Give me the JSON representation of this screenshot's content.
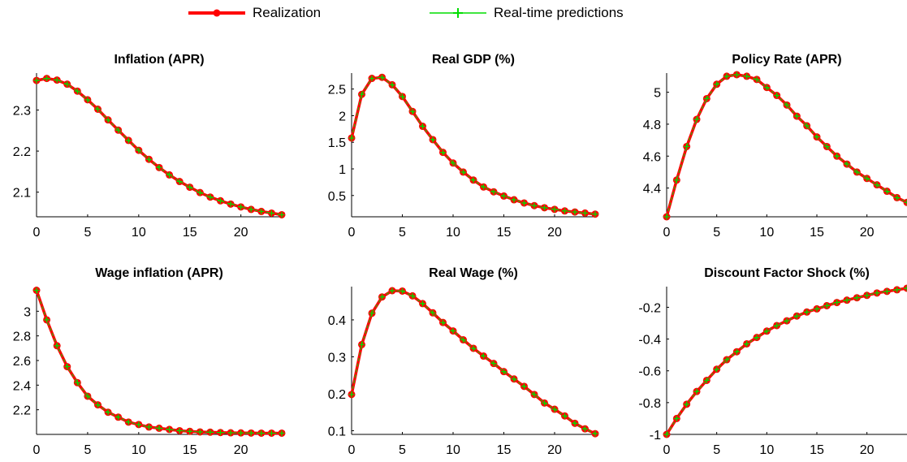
{
  "legend": [
    {
      "label": "Realization",
      "color": "#ff0000",
      "marker": "dot"
    },
    {
      "label": "Real-time predictions",
      "color": "#00dd00",
      "marker": "plus"
    }
  ],
  "colors": {
    "realization": "#ff0000",
    "prediction": "#00dd00",
    "axis": "#000000"
  },
  "chart_data": [
    {
      "type": "line",
      "title": "Inflation (APR)",
      "xlim": [
        0,
        24
      ],
      "ylim": [
        2.04,
        2.39
      ],
      "xticks": [
        0,
        5,
        10,
        15,
        20
      ],
      "yticks": [
        2.1,
        2.2,
        2.3
      ],
      "ytick_labels": [
        "2.1",
        "2.2",
        "2.3"
      ],
      "x": [
        0,
        1,
        2,
        3,
        4,
        5,
        6,
        7,
        8,
        9,
        10,
        11,
        12,
        13,
        14,
        15,
        16,
        17,
        18,
        19,
        20,
        21,
        22,
        23,
        24
      ],
      "series": [
        {
          "name": "Realization",
          "values": [
            2.372,
            2.377,
            2.373,
            2.363,
            2.346,
            2.325,
            2.302,
            2.276,
            2.251,
            2.226,
            2.202,
            2.18,
            2.16,
            2.142,
            2.126,
            2.112,
            2.099,
            2.088,
            2.079,
            2.071,
            2.064,
            2.058,
            2.053,
            2.049,
            2.045
          ]
        },
        {
          "name": "Real-time predictions",
          "values": [
            2.372,
            2.377,
            2.373,
            2.363,
            2.346,
            2.325,
            2.302,
            2.276,
            2.251,
            2.226,
            2.202,
            2.18,
            2.16,
            2.142,
            2.126,
            2.112,
            2.099,
            2.088,
            2.079,
            2.071,
            2.064,
            2.058,
            2.053,
            2.049,
            2.045
          ]
        }
      ]
    },
    {
      "type": "line",
      "title": "Real GDP (%)",
      "xlim": [
        0,
        24
      ],
      "ylim": [
        0.1,
        2.8
      ],
      "xticks": [
        0,
        5,
        10,
        15,
        20
      ],
      "yticks": [
        0.5,
        1,
        1.5,
        2,
        2.5
      ],
      "ytick_labels": [
        "0.5",
        "1",
        "1.5",
        "2",
        "2.5"
      ],
      "x": [
        0,
        1,
        2,
        3,
        4,
        5,
        6,
        7,
        8,
        9,
        10,
        11,
        12,
        13,
        14,
        15,
        16,
        17,
        18,
        19,
        20,
        21,
        22,
        23,
        24
      ],
      "series": [
        {
          "name": "Realization",
          "values": [
            1.58,
            2.4,
            2.7,
            2.72,
            2.58,
            2.36,
            2.08,
            1.8,
            1.55,
            1.31,
            1.11,
            0.94,
            0.79,
            0.66,
            0.57,
            0.49,
            0.42,
            0.36,
            0.31,
            0.27,
            0.24,
            0.21,
            0.19,
            0.17,
            0.15
          ]
        },
        {
          "name": "Real-time predictions",
          "values": [
            1.58,
            2.4,
            2.7,
            2.72,
            2.58,
            2.36,
            2.08,
            1.8,
            1.55,
            1.31,
            1.11,
            0.94,
            0.79,
            0.66,
            0.57,
            0.49,
            0.42,
            0.36,
            0.31,
            0.27,
            0.24,
            0.21,
            0.19,
            0.17,
            0.15
          ]
        }
      ]
    },
    {
      "type": "line",
      "title": "Policy Rate (APR)",
      "xlim": [
        0,
        24
      ],
      "ylim": [
        4.22,
        5.12
      ],
      "xticks": [
        0,
        5,
        10,
        15,
        20
      ],
      "yticks": [
        4.4,
        4.6,
        4.8,
        5
      ],
      "ytick_labels": [
        "4.4",
        "4.6",
        "4.8",
        "5"
      ],
      "x": [
        0,
        1,
        2,
        3,
        4,
        5,
        6,
        7,
        8,
        9,
        10,
        11,
        12,
        13,
        14,
        15,
        16,
        17,
        18,
        19,
        20,
        21,
        22,
        23,
        24
      ],
      "series": [
        {
          "name": "Realization",
          "values": [
            4.22,
            4.45,
            4.66,
            4.83,
            4.96,
            5.05,
            5.1,
            5.11,
            5.1,
            5.08,
            5.03,
            4.98,
            4.92,
            4.85,
            4.79,
            4.72,
            4.66,
            4.6,
            4.55,
            4.5,
            4.46,
            4.42,
            4.38,
            4.34,
            4.31
          ]
        },
        {
          "name": "Real-time predictions",
          "values": [
            4.22,
            4.45,
            4.66,
            4.83,
            4.96,
            5.05,
            5.1,
            5.11,
            5.1,
            5.08,
            5.03,
            4.98,
            4.92,
            4.85,
            4.79,
            4.72,
            4.66,
            4.6,
            4.55,
            4.5,
            4.46,
            4.42,
            4.38,
            4.34,
            4.31
          ]
        }
      ]
    },
    {
      "type": "line",
      "title": "Wage inflation (APR)",
      "xlim": [
        0,
        24
      ],
      "ylim": [
        2.0,
        3.2
      ],
      "xticks": [
        0,
        5,
        10,
        15,
        20
      ],
      "yticks": [
        2.2,
        2.4,
        2.6,
        2.8,
        3
      ],
      "ytick_labels": [
        "2.2",
        "2.4",
        "2.6",
        "2.8",
        "3"
      ],
      "x": [
        0,
        1,
        2,
        3,
        4,
        5,
        6,
        7,
        8,
        9,
        10,
        11,
        12,
        13,
        14,
        15,
        16,
        17,
        18,
        19,
        20,
        21,
        22,
        23,
        24
      ],
      "series": [
        {
          "name": "Realization",
          "values": [
            3.17,
            2.93,
            2.72,
            2.55,
            2.42,
            2.31,
            2.24,
            2.18,
            2.14,
            2.1,
            2.08,
            2.06,
            2.05,
            2.04,
            2.03,
            2.025,
            2.02,
            2.018,
            2.015,
            2.013,
            2.012,
            2.011,
            2.01,
            2.01,
            2.01
          ]
        },
        {
          "name": "Real-time predictions",
          "values": [
            3.17,
            2.93,
            2.72,
            2.55,
            2.42,
            2.31,
            2.24,
            2.18,
            2.14,
            2.1,
            2.08,
            2.06,
            2.05,
            2.04,
            2.03,
            2.025,
            2.02,
            2.018,
            2.015,
            2.013,
            2.012,
            2.011,
            2.01,
            2.01,
            2.01
          ]
        }
      ]
    },
    {
      "type": "line",
      "title": "Real Wage (%)",
      "xlim": [
        0,
        24
      ],
      "ylim": [
        0.09,
        0.49
      ],
      "xticks": [
        0,
        5,
        10,
        15,
        20
      ],
      "yticks": [
        0.1,
        0.2,
        0.3,
        0.4
      ],
      "ytick_labels": [
        "0.1",
        "0.2",
        "0.3",
        "0.4"
      ],
      "x": [
        0,
        1,
        2,
        3,
        4,
        5,
        6,
        7,
        8,
        9,
        10,
        11,
        12,
        13,
        14,
        15,
        16,
        17,
        18,
        19,
        20,
        21,
        22,
        23,
        24
      ],
      "series": [
        {
          "name": "Realization",
          "values": [
            0.198,
            0.333,
            0.418,
            0.462,
            0.479,
            0.478,
            0.465,
            0.444,
            0.419,
            0.393,
            0.37,
            0.346,
            0.323,
            0.302,
            0.282,
            0.26,
            0.24,
            0.22,
            0.198,
            0.175,
            0.158,
            0.14,
            0.12,
            0.105,
            0.092
          ]
        },
        {
          "name": "Real-time predictions",
          "values": [
            0.198,
            0.333,
            0.418,
            0.462,
            0.479,
            0.478,
            0.465,
            0.444,
            0.419,
            0.393,
            0.37,
            0.346,
            0.323,
            0.302,
            0.282,
            0.26,
            0.24,
            0.22,
            0.198,
            0.175,
            0.158,
            0.14,
            0.12,
            0.105,
            0.092
          ]
        }
      ]
    },
    {
      "type": "line",
      "title": "Discount Factor Shock (%)",
      "xlim": [
        0,
        24
      ],
      "ylim": [
        -1.0,
        -0.07
      ],
      "xticks": [
        0,
        5,
        10,
        15,
        20
      ],
      "yticks": [
        -1,
        -0.8,
        -0.6,
        -0.4,
        -0.2
      ],
      "ytick_labels": [
        "-1",
        "-0.8",
        "-0.6",
        "-0.4",
        "-0.2"
      ],
      "x": [
        0,
        1,
        2,
        3,
        4,
        5,
        6,
        7,
        8,
        9,
        10,
        11,
        12,
        13,
        14,
        15,
        16,
        17,
        18,
        19,
        20,
        21,
        22,
        23,
        24
      ],
      "series": [
        {
          "name": "Realization",
          "values": [
            -1.0,
            -0.9,
            -0.81,
            -0.73,
            -0.66,
            -0.59,
            -0.53,
            -0.48,
            -0.43,
            -0.39,
            -0.35,
            -0.315,
            -0.285,
            -0.255,
            -0.23,
            -0.21,
            -0.19,
            -0.17,
            -0.155,
            -0.14,
            -0.125,
            -0.11,
            -0.1,
            -0.09,
            -0.08
          ]
        },
        {
          "name": "Real-time predictions",
          "values": [
            -1.0,
            -0.9,
            -0.81,
            -0.73,
            -0.66,
            -0.59,
            -0.53,
            -0.48,
            -0.43,
            -0.39,
            -0.35,
            -0.315,
            -0.285,
            -0.255,
            -0.23,
            -0.21,
            -0.19,
            -0.17,
            -0.155,
            -0.14,
            -0.125,
            -0.11,
            -0.1,
            -0.09,
            -0.08
          ]
        }
      ]
    }
  ]
}
